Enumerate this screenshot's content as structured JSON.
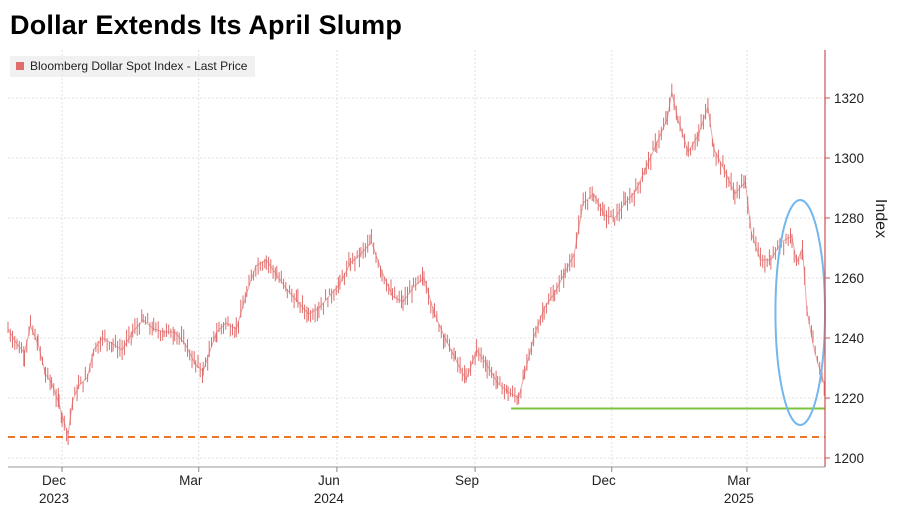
{
  "title": "Dollar Extends Its April Slump",
  "chart_data": {
    "type": "line",
    "title": "Dollar Extends Its April Slump",
    "legend": {
      "label": "Bloomberg Dollar Spot Index - Last Price",
      "placement": "top-left"
    },
    "ylabel": "Index",
    "ylim": [
      1197,
      1336
    ],
    "yticks": [
      "1200",
      "1220",
      "1240",
      "1260",
      "1280",
      "1300",
      "1320"
    ],
    "x_ticks": [
      {
        "date": "2023-12-01",
        "label": "Dec",
        "year": "2023"
      },
      {
        "date": "2024-03-01",
        "label": "Mar",
        "year": ""
      },
      {
        "date": "2024-06-01",
        "label": "Jun",
        "year": "2024"
      },
      {
        "date": "2024-09-01",
        "label": "Sep",
        "year": ""
      },
      {
        "date": "2024-12-01",
        "label": "Dec",
        "year": ""
      },
      {
        "date": "2025-03-01",
        "label": "Mar",
        "year": "2025"
      }
    ],
    "x_range": [
      "2023-10-26",
      "2025-04-22"
    ],
    "grid": true,
    "series": [
      {
        "name": "Bloomberg Dollar Spot Index - Last Price",
        "color": "#e06c6c",
        "points": [
          [
            "2023-10-26",
            1243
          ],
          [
            "2023-11-01",
            1238
          ],
          [
            "2023-11-06",
            1235
          ],
          [
            "2023-11-10",
            1244
          ],
          [
            "2023-11-15",
            1238
          ],
          [
            "2023-11-20",
            1228
          ],
          [
            "2023-11-24",
            1225
          ],
          [
            "2023-11-29",
            1218
          ],
          [
            "2023-12-01",
            1214
          ],
          [
            "2023-12-05",
            1208
          ],
          [
            "2023-12-08",
            1219
          ],
          [
            "2023-12-12",
            1224
          ],
          [
            "2023-12-18",
            1227
          ],
          [
            "2023-12-22",
            1236
          ],
          [
            "2023-12-28",
            1240
          ],
          [
            "2024-01-04",
            1238
          ],
          [
            "2024-01-10",
            1236
          ],
          [
            "2024-01-17",
            1242
          ],
          [
            "2024-01-24",
            1246
          ],
          [
            "2024-01-31",
            1243
          ],
          [
            "2024-02-07",
            1242
          ],
          [
            "2024-02-14",
            1242
          ],
          [
            "2024-02-21",
            1238
          ],
          [
            "2024-02-28",
            1231
          ],
          [
            "2024-03-04",
            1229
          ],
          [
            "2024-03-08",
            1235
          ],
          [
            "2024-03-13",
            1242
          ],
          [
            "2024-03-19",
            1245
          ],
          [
            "2024-03-26",
            1243
          ],
          [
            "2024-04-02",
            1255
          ],
          [
            "2024-04-08",
            1264
          ],
          [
            "2024-04-15",
            1266
          ],
          [
            "2024-04-22",
            1261
          ],
          [
            "2024-04-29",
            1256
          ],
          [
            "2024-05-06",
            1252
          ],
          [
            "2024-05-13",
            1248
          ],
          [
            "2024-05-20",
            1250
          ],
          [
            "2024-05-27",
            1254
          ],
          [
            "2024-06-03",
            1258
          ],
          [
            "2024-06-10",
            1265
          ],
          [
            "2024-06-17",
            1268
          ],
          [
            "2024-06-24",
            1272
          ],
          [
            "2024-07-01",
            1262
          ],
          [
            "2024-07-08",
            1254
          ],
          [
            "2024-07-15",
            1252
          ],
          [
            "2024-07-22",
            1257
          ],
          [
            "2024-07-29",
            1260
          ],
          [
            "2024-08-05",
            1248
          ],
          [
            "2024-08-12",
            1240
          ],
          [
            "2024-08-19",
            1233
          ],
          [
            "2024-08-26",
            1226
          ],
          [
            "2024-09-02",
            1236
          ],
          [
            "2024-09-09",
            1231
          ],
          [
            "2024-09-16",
            1225
          ],
          [
            "2024-09-23",
            1222
          ],
          [
            "2024-09-30",
            1220
          ],
          [
            "2024-10-04",
            1228
          ],
          [
            "2024-10-10",
            1240
          ],
          [
            "2024-10-17",
            1250
          ],
          [
            "2024-10-24",
            1255
          ],
          [
            "2024-10-31",
            1262
          ],
          [
            "2024-11-06",
            1268
          ],
          [
            "2024-11-12",
            1285
          ],
          [
            "2024-11-19",
            1288
          ],
          [
            "2024-11-26",
            1281
          ],
          [
            "2024-12-03",
            1280
          ],
          [
            "2024-12-10",
            1285
          ],
          [
            "2024-12-17",
            1289
          ],
          [
            "2024-12-24",
            1297
          ],
          [
            "2024-12-31",
            1305
          ],
          [
            "2025-01-07",
            1313
          ],
          [
            "2025-01-10",
            1322
          ],
          [
            "2025-01-14",
            1313
          ],
          [
            "2025-01-21",
            1302
          ],
          [
            "2025-01-28",
            1308
          ],
          [
            "2025-02-03",
            1317
          ],
          [
            "2025-02-07",
            1303
          ],
          [
            "2025-02-14",
            1296
          ],
          [
            "2025-02-21",
            1288
          ],
          [
            "2025-02-28",
            1292
          ],
          [
            "2025-03-04",
            1275
          ],
          [
            "2025-03-10",
            1266
          ],
          [
            "2025-03-17",
            1266
          ],
          [
            "2025-03-24",
            1272
          ],
          [
            "2025-03-31",
            1274
          ],
          [
            "2025-04-03",
            1265
          ],
          [
            "2025-04-07",
            1270
          ],
          [
            "2025-04-10",
            1249
          ],
          [
            "2025-04-14",
            1238
          ],
          [
            "2025-04-17",
            1232
          ],
          [
            "2025-04-22",
            1224
          ]
        ]
      }
    ],
    "reference_lines": [
      {
        "name": "green-support-line",
        "y": 1216.5,
        "x_start": "2024-09-25",
        "x_end": "2025-04-22",
        "style": "solid",
        "color": "#7cc43c"
      },
      {
        "name": "orange-dashed-line",
        "y": 1207,
        "x_start": "2023-10-26",
        "x_end": "2025-04-22",
        "style": "dashed",
        "color": "#e8752a"
      }
    ],
    "annotations": [
      {
        "name": "recent-drop-ellipse",
        "shape": "ellipse",
        "color": "#72b7ee",
        "x_from": "2025-03-20",
        "x_to": "2025-04-22",
        "y_from": 1211,
        "y_to": 1286
      }
    ]
  },
  "colors": {
    "series": "#e06c6c",
    "axis": "#d25050",
    "grid": "#e1e1e1",
    "legend_swatch": "#e06c6c"
  }
}
